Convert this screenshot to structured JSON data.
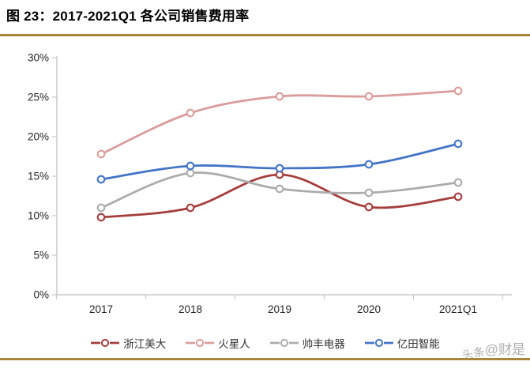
{
  "header": {
    "title": "图 23：2017-2021Q1 各公司销售费用率"
  },
  "colors": {
    "accent_rule": "#A9863C",
    "axis_line": "#C8C8C8",
    "tick_text": "#262626",
    "legend_text": "#333333",
    "watermark": "#A0A0A0",
    "background": "#FFFFFF"
  },
  "watermark": {
    "part1": "头条",
    "part2": "@财是"
  },
  "chart_data": {
    "type": "line",
    "title": "2017-2021Q1 各公司销售费用率",
    "categories": [
      "2017",
      "2018",
      "2019",
      "2020",
      "2021Q1"
    ],
    "series": [
      {
        "name": "浙江美大",
        "color": "#A53D3D",
        "values": [
          9.8,
          11.0,
          15.2,
          11.1,
          12.4
        ]
      },
      {
        "name": "火星人",
        "color": "#DB9C9C",
        "values": [
          17.8,
          23.0,
          25.1,
          25.1,
          25.8
        ]
      },
      {
        "name": "帅丰电器",
        "color": "#ACACAC",
        "values": [
          11.0,
          15.4,
          13.4,
          12.9,
          14.2
        ]
      },
      {
        "name": "亿田智能",
        "color": "#4374C9",
        "values": [
          14.6,
          16.3,
          16.0,
          16.5,
          19.1
        ]
      }
    ],
    "ylim": [
      0,
      30
    ],
    "ytick_step": 5,
    "ytick_labels": [
      "0%",
      "5%",
      "10%",
      "15%",
      "20%",
      "25%",
      "30%"
    ],
    "xlabel": "",
    "ylabel": "",
    "grid": false,
    "smooth": true,
    "marker": "open-circle",
    "legend_position": "bottom"
  }
}
